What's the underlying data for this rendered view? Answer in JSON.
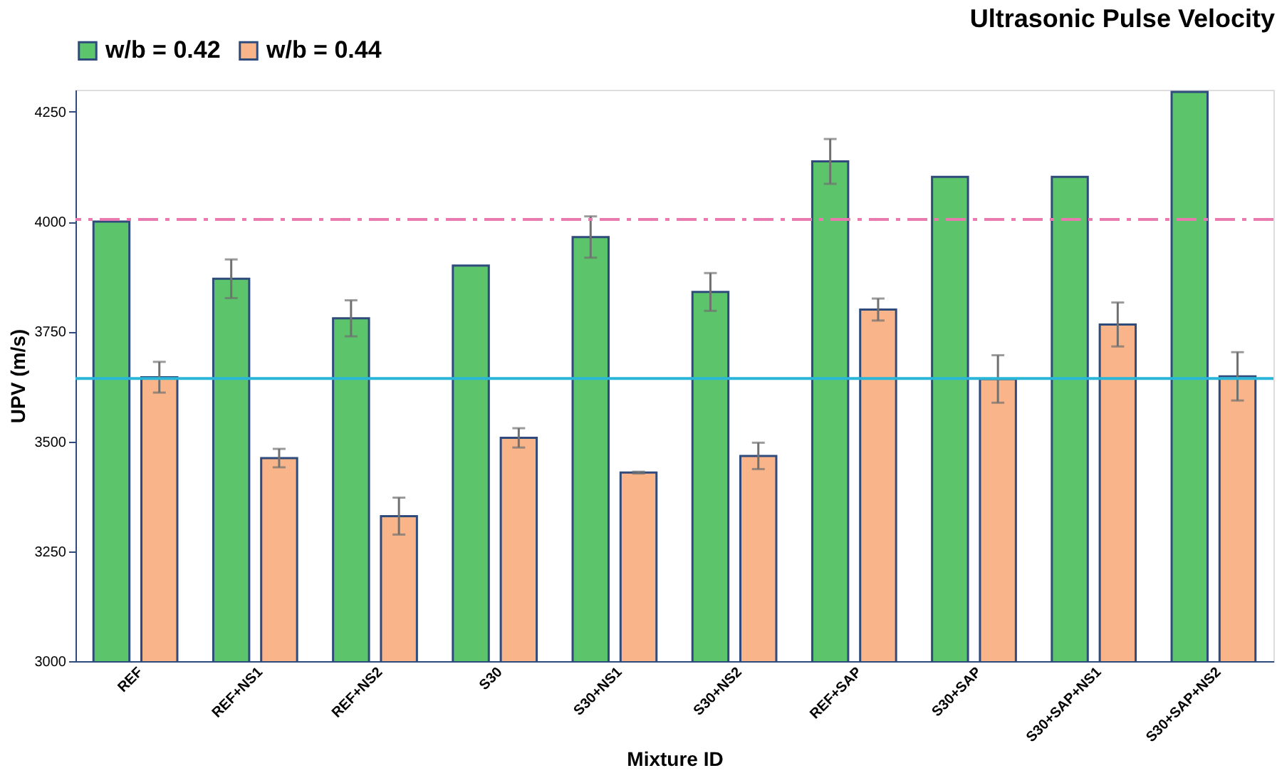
{
  "chart_data": {
    "type": "bar",
    "title": "Ultrasonic Pulse Velocity",
    "xlabel": "Mixture ID",
    "ylabel": "UPV (m/s)",
    "categories": [
      "REF",
      "REF+NS1",
      "REF+NS2",
      "S30",
      "S30+NS1",
      "S30+NS2",
      "REF+SAP",
      "S30+SAP",
      "S30+SAP+NS1",
      "S30+SAP+NS2"
    ],
    "series": [
      {
        "name": "w/b = 0.42",
        "color": "#5cc46a",
        "values": [
          4000,
          3870,
          3780,
          3900,
          3965,
          3840,
          4137,
          4102,
          4102,
          4295
        ],
        "errors": [
          null,
          44,
          41,
          null,
          47,
          43,
          51,
          null,
          null,
          null
        ]
      },
      {
        "name": "w/b = 0.44",
        "color": "#f9b48a",
        "values": [
          3646,
          3462,
          3330,
          3508,
          3429,
          3467,
          3800,
          3642,
          3766,
          3648
        ],
        "errors": [
          35,
          21,
          42,
          22,
          2,
          30,
          25,
          54,
          50,
          55
        ]
      }
    ],
    "ylim": [
      3000,
      4300
    ],
    "yticks": [
      3000,
      3250,
      3500,
      3750,
      4000,
      4250
    ],
    "ref_lines": [
      {
        "axis": "y",
        "value": 4005,
        "color": "#e87ab0",
        "line_style": "dashed"
      },
      {
        "axis": "y",
        "value": 3643,
        "color": "#29b6d8",
        "line_style": "solid"
      }
    ],
    "grid": false,
    "legend": "top"
  }
}
